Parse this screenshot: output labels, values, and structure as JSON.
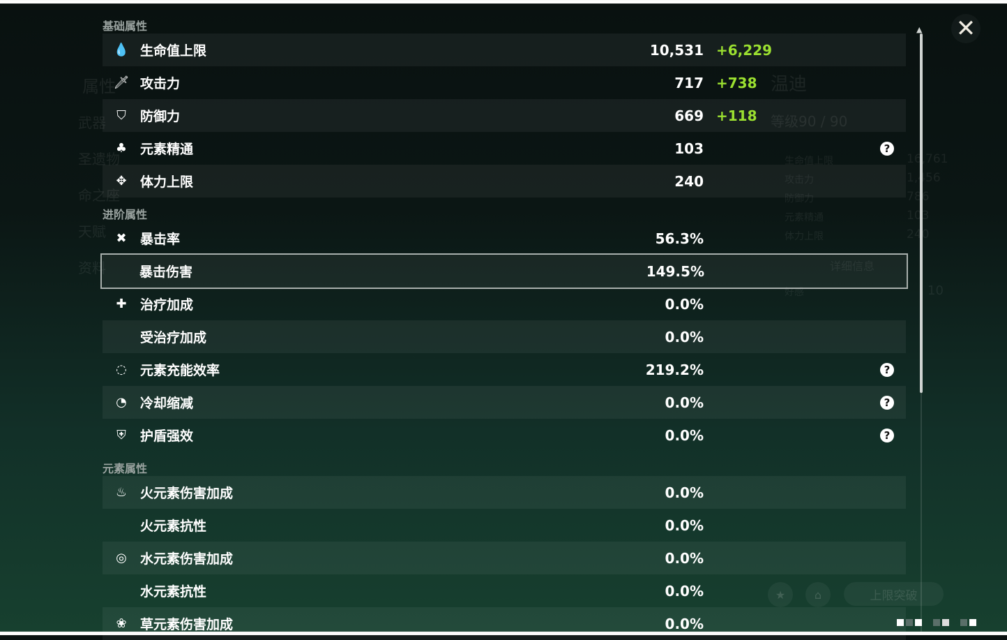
{
  "sections": [
    {
      "title": "基础属性",
      "rows": [
        {
          "icon": "hp-drop-icon",
          "glyph": "💧",
          "label": "生命值上限",
          "value": "10,531",
          "bonus": "+6,229"
        },
        {
          "icon": "attack-sword-icon",
          "glyph": "🗡",
          "label": "攻击力",
          "value": "717",
          "bonus": "+738"
        },
        {
          "icon": "defense-shield-icon",
          "glyph": "⛉",
          "label": "防御力",
          "value": "669",
          "bonus": "+118"
        },
        {
          "icon": "elemental-mastery-icon",
          "glyph": "♣",
          "label": "元素精通",
          "value": "103",
          "help": "?"
        },
        {
          "icon": "stamina-icon",
          "glyph": "✥",
          "label": "体力上限",
          "value": "240"
        }
      ]
    },
    {
      "title": "进阶属性",
      "rows": [
        {
          "icon": "crit-rate-icon",
          "glyph": "✖",
          "label": "暴击率",
          "value": "56.3%"
        },
        {
          "icon": "",
          "glyph": "",
          "label": "暴击伤害",
          "value": "149.5%",
          "selected": true
        },
        {
          "icon": "healing-cross-icon",
          "glyph": "✚",
          "label": "治疗加成",
          "value": "0.0%"
        },
        {
          "icon": "",
          "glyph": "",
          "label": "受治疗加成",
          "value": "0.0%"
        },
        {
          "icon": "energy-recharge-icon",
          "glyph": "◌",
          "label": "元素充能效率",
          "value": "219.2%",
          "help": "?"
        },
        {
          "icon": "cooldown-icon",
          "glyph": "◔",
          "label": "冷却缩减",
          "value": "0.0%",
          "help": "?"
        },
        {
          "icon": "shield-strength-icon",
          "glyph": "⛨",
          "label": "护盾强效",
          "value": "0.0%",
          "help": "?"
        }
      ]
    },
    {
      "title": "元素属性",
      "rows": [
        {
          "icon": "pyro-icon",
          "glyph": "♨",
          "label": "火元素伤害加成",
          "value": "0.0%"
        },
        {
          "icon": "",
          "glyph": "",
          "label": "火元素抗性",
          "value": "0.0%"
        },
        {
          "icon": "hydro-icon",
          "glyph": "◎",
          "label": "水元素伤害加成",
          "value": "0.0%"
        },
        {
          "icon": "",
          "glyph": "",
          "label": "水元素抗性",
          "value": "0.0%"
        },
        {
          "icon": "dendro-icon",
          "glyph": "❀",
          "label": "草元素伤害加成",
          "value": "0.0%"
        }
      ]
    }
  ],
  "background": {
    "character_name": "温迪",
    "level": "等级90 / 90",
    "side_tabs": [
      "属性",
      "武器",
      "圣遗物",
      "命之座",
      "天赋",
      "资料"
    ],
    "mini_stats": [
      {
        "label": "生命值上限",
        "value": "16,761"
      },
      {
        "label": "攻击力",
        "value": "1,456"
      },
      {
        "label": "防御力",
        "value": "786"
      },
      {
        "label": "元素精通",
        "value": "103"
      },
      {
        "label": "体力上限",
        "value": "240"
      }
    ],
    "details_button": "详细信息",
    "friendship_label": "好感",
    "friendship_value": "10",
    "ascend_button": "上限突破"
  },
  "close_icon": "close-x-icon",
  "colors": {
    "bonus": "#9be030",
    "selected_border": "#a9b0ad"
  }
}
